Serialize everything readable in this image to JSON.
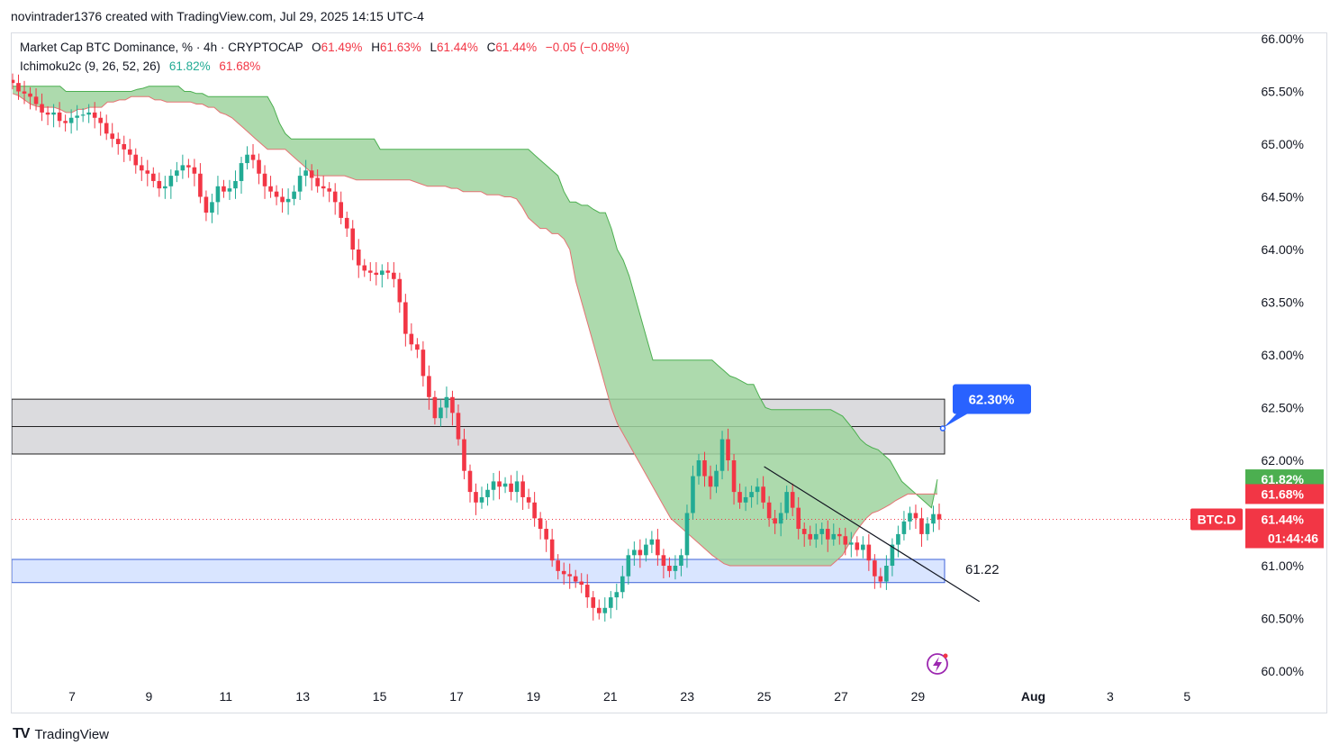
{
  "header": {
    "author_line": "novintrader1376 created with TradingView.com, Jul 29, 2025 14:15 UTC-4"
  },
  "legend": {
    "symbol": "Market Cap BTC Dominance, % · 4h · CRYPTOCAP",
    "o_label": "O",
    "o_value": "61.49%",
    "h_label": "H",
    "h_value": "61.63%",
    "l_label": "L",
    "l_value": "61.44%",
    "c_label": "C",
    "c_value": "61.44%",
    "change": "−0.05 (−0.08%)",
    "indicator": "Ichimoku2c (9, 26, 52, 26)",
    "ind_value_1": "61.82%",
    "ind_value_2": "61.68%"
  },
  "footer": {
    "brand_mark": "TV",
    "brand": "TradingView"
  },
  "colors": {
    "up": "#22ab94",
    "down": "#f23645",
    "cloud": "#9fd39f",
    "zone_gray": "#d9d9dc",
    "zone_blue": "#d5e2ff",
    "callout": "#2962ff"
  },
  "chart_data": {
    "type": "candlestick",
    "symbol": "BTC.D",
    "y_range": [
      59.8,
      66.2
    ],
    "y_ticks": [
      "66.00%",
      "65.50%",
      "65.00%",
      "64.50%",
      "64.00%",
      "63.50%",
      "63.00%",
      "62.50%",
      "62.00%",
      "61.00%",
      "60.50%",
      "60.00%"
    ],
    "y_tick_values": [
      66.0,
      65.5,
      65.0,
      64.5,
      64.0,
      63.5,
      63.0,
      62.5,
      62.0,
      61.0,
      60.5,
      60.0
    ],
    "x_ticks": [
      {
        "label": "7",
        "day": 7
      },
      {
        "label": "9",
        "day": 9
      },
      {
        "label": "11",
        "day": 11
      },
      {
        "label": "13",
        "day": 13
      },
      {
        "label": "15",
        "day": 15
      },
      {
        "label": "17",
        "day": 17
      },
      {
        "label": "19",
        "day": 19
      },
      {
        "label": "21",
        "day": 21
      },
      {
        "label": "23",
        "day": 23
      },
      {
        "label": "25",
        "day": 25
      },
      {
        "label": "27",
        "day": 27
      },
      {
        "label": "29",
        "day": 29
      },
      {
        "label": "Aug",
        "day": 32,
        "bold": true
      },
      {
        "label": "3",
        "day": 34
      },
      {
        "label": "5",
        "day": 36
      }
    ],
    "x_range_days": [
      5.4,
      37.4
    ],
    "closes": [
      65.58,
      65.5,
      65.48,
      65.45,
      65.38,
      65.3,
      65.28,
      65.3,
      65.22,
      65.2,
      65.25,
      65.27,
      65.28,
      65.3,
      65.25,
      65.2,
      65.1,
      65.05,
      65.0,
      64.95,
      64.9,
      64.8,
      64.75,
      64.72,
      64.65,
      64.58,
      64.6,
      64.7,
      64.75,
      64.8,
      64.78,
      64.72,
      64.5,
      64.35,
      64.45,
      64.6,
      64.55,
      64.58,
      64.65,
      64.82,
      64.9,
      64.85,
      64.72,
      64.6,
      64.55,
      64.5,
      64.45,
      64.48,
      64.55,
      64.7,
      64.75,
      64.68,
      64.6,
      64.58,
      64.55,
      64.45,
      64.3,
      64.2,
      64.0,
      63.85,
      63.8,
      63.78,
      63.76,
      63.8,
      63.78,
      63.72,
      63.5,
      63.2,
      63.1,
      63.05,
      62.8,
      62.6,
      62.4,
      62.5,
      62.6,
      62.45,
      62.2,
      61.9,
      61.7,
      61.6,
      61.65,
      61.72,
      61.8,
      61.75,
      61.78,
      61.7,
      61.8,
      61.65,
      61.6,
      61.45,
      61.35,
      61.25,
      61.05,
      60.95,
      60.92,
      60.9,
      60.85,
      60.82,
      60.7,
      60.6,
      60.55,
      60.6,
      60.7,
      60.75,
      60.9,
      61.1,
      61.15,
      61.1,
      61.2,
      61.25,
      61.1,
      61.0,
      60.95,
      61.0,
      61.1,
      61.5,
      61.85,
      62.0,
      61.85,
      61.75,
      61.9,
      62.2,
      62.0,
      61.7,
      61.6,
      61.65,
      61.7,
      61.75,
      61.6,
      61.45,
      61.4,
      61.5,
      61.7,
      61.55,
      61.35,
      61.3,
      61.25,
      61.3,
      61.35,
      61.25,
      61.3,
      61.28,
      61.2,
      61.22,
      61.15,
      61.2,
      61.05,
      60.9,
      60.85,
      61.0,
      61.2,
      61.3,
      61.42,
      61.5,
      61.45,
      61.3,
      61.4,
      61.49,
      61.44
    ],
    "cloud_top": [
      65.55,
      65.55,
      65.55,
      65.55,
      65.55,
      65.55,
      65.55,
      65.55,
      65.55,
      65.5,
      65.5,
      65.5,
      65.5,
      65.5,
      65.5,
      65.5,
      65.5,
      65.5,
      65.5,
      65.5,
      65.5,
      65.52,
      65.53,
      65.55,
      65.55,
      65.55,
      65.55,
      65.55,
      65.55,
      65.5,
      65.5,
      65.48,
      65.48,
      65.45,
      65.45,
      65.45,
      65.45,
      65.45,
      65.45,
      65.45,
      65.45,
      65.45,
      65.45,
      65.45,
      65.35,
      65.2,
      65.1,
      65.05,
      65.05,
      65.05,
      65.05,
      65.05,
      65.05,
      65.05,
      65.05,
      65.05,
      65.05,
      65.05,
      65.05,
      65.05,
      65.05,
      65.05,
      64.95,
      64.95,
      64.95,
      64.95,
      64.95,
      64.95,
      64.95,
      64.95,
      64.95,
      64.95,
      64.95,
      64.95,
      64.95,
      64.95,
      64.95,
      64.95,
      64.95,
      64.95,
      64.95,
      64.95,
      64.95,
      64.95,
      64.95,
      64.95,
      64.95,
      64.95,
      64.9,
      64.85,
      64.8,
      64.75,
      64.7,
      64.55,
      64.45,
      64.45,
      64.42,
      64.42,
      64.38,
      64.35,
      64.35,
      64.2,
      64.0,
      63.9,
      63.75,
      63.55,
      63.35,
      63.15,
      62.95,
      62.95,
      62.95,
      62.95,
      62.95,
      62.95,
      62.95,
      62.95,
      62.95,
      62.95,
      62.95,
      62.9,
      62.85,
      62.8,
      62.78,
      62.75,
      62.72,
      62.72,
      62.6,
      62.5,
      62.48,
      62.48,
      62.48,
      62.48,
      62.48,
      62.48,
      62.48,
      62.48,
      62.48,
      62.48,
      62.48,
      62.45,
      62.42,
      62.35,
      62.28,
      62.2,
      62.15,
      62.12,
      62.1,
      62.05,
      62.0,
      61.9,
      61.8,
      61.75,
      61.7,
      61.65,
      61.6,
      61.55,
      61.82
    ],
    "cloud_bottom": [
      65.48,
      65.46,
      65.42,
      65.38,
      65.36,
      65.35,
      65.35,
      65.35,
      65.33,
      65.3,
      65.3,
      65.33,
      65.33,
      65.35,
      65.35,
      65.35,
      65.4,
      65.4,
      65.42,
      65.42,
      65.45,
      65.45,
      65.45,
      65.45,
      65.42,
      65.42,
      65.4,
      65.4,
      65.4,
      65.4,
      65.4,
      65.38,
      65.38,
      65.35,
      65.35,
      65.3,
      65.28,
      65.25,
      65.2,
      65.15,
      65.1,
      65.05,
      65.0,
      64.95,
      64.95,
      64.95,
      64.95,
      64.9,
      64.85,
      64.8,
      64.75,
      64.7,
      64.7,
      64.7,
      64.7,
      64.7,
      64.7,
      64.68,
      64.66,
      64.66,
      64.66,
      64.66,
      64.66,
      64.66,
      64.66,
      64.66,
      64.66,
      64.66,
      64.64,
      64.62,
      64.6,
      64.6,
      64.6,
      64.6,
      64.58,
      64.58,
      64.55,
      64.55,
      64.55,
      64.55,
      64.52,
      64.52,
      64.52,
      64.5,
      64.5,
      64.48,
      64.4,
      64.3,
      64.25,
      64.2,
      64.2,
      64.15,
      64.15,
      64.1,
      64.0,
      63.7,
      63.5,
      63.3,
      63.1,
      62.9,
      62.7,
      62.5,
      62.35,
      62.25,
      62.15,
      62.05,
      61.95,
      61.85,
      61.75,
      61.65,
      61.55,
      61.45,
      61.4,
      61.35,
      61.3,
      61.25,
      61.2,
      61.15,
      61.1,
      61.06,
      61.02,
      61.0,
      61.0,
      61.0,
      61.0,
      61.0,
      61.0,
      61.0,
      61.0,
      61.0,
      61.0,
      61.0,
      61.0,
      61.0,
      61.0,
      61.0,
      61.0,
      61.0,
      61.0,
      61.05,
      61.1,
      61.2,
      61.3,
      61.38,
      61.45,
      61.5,
      61.52,
      61.55,
      61.58,
      61.62,
      61.65,
      61.68,
      61.68,
      61.68,
      61.68,
      61.68,
      61.68
    ],
    "zones": [
      {
        "name": "resistance-zone",
        "from": 62.06,
        "to": 62.58,
        "mid": 62.32
      },
      {
        "name": "support-zone",
        "from": 60.84,
        "to": 61.06
      }
    ],
    "trendline": {
      "from": {
        "day": 25.0,
        "price": 61.94
      },
      "to": {
        "day": 30.6,
        "price": 60.66
      }
    },
    "price_line": 61.44,
    "callout_label": "62.30%",
    "support_label": "61.22",
    "last_price_badge": {
      "symbol": "BTC.D",
      "price": "61.44%",
      "countdown": "01:44:46"
    },
    "ichimoku_badges": [
      {
        "value": "61.82%",
        "color": "#4caf50"
      },
      {
        "value": "61.68%",
        "color": "#f23645"
      }
    ]
  }
}
